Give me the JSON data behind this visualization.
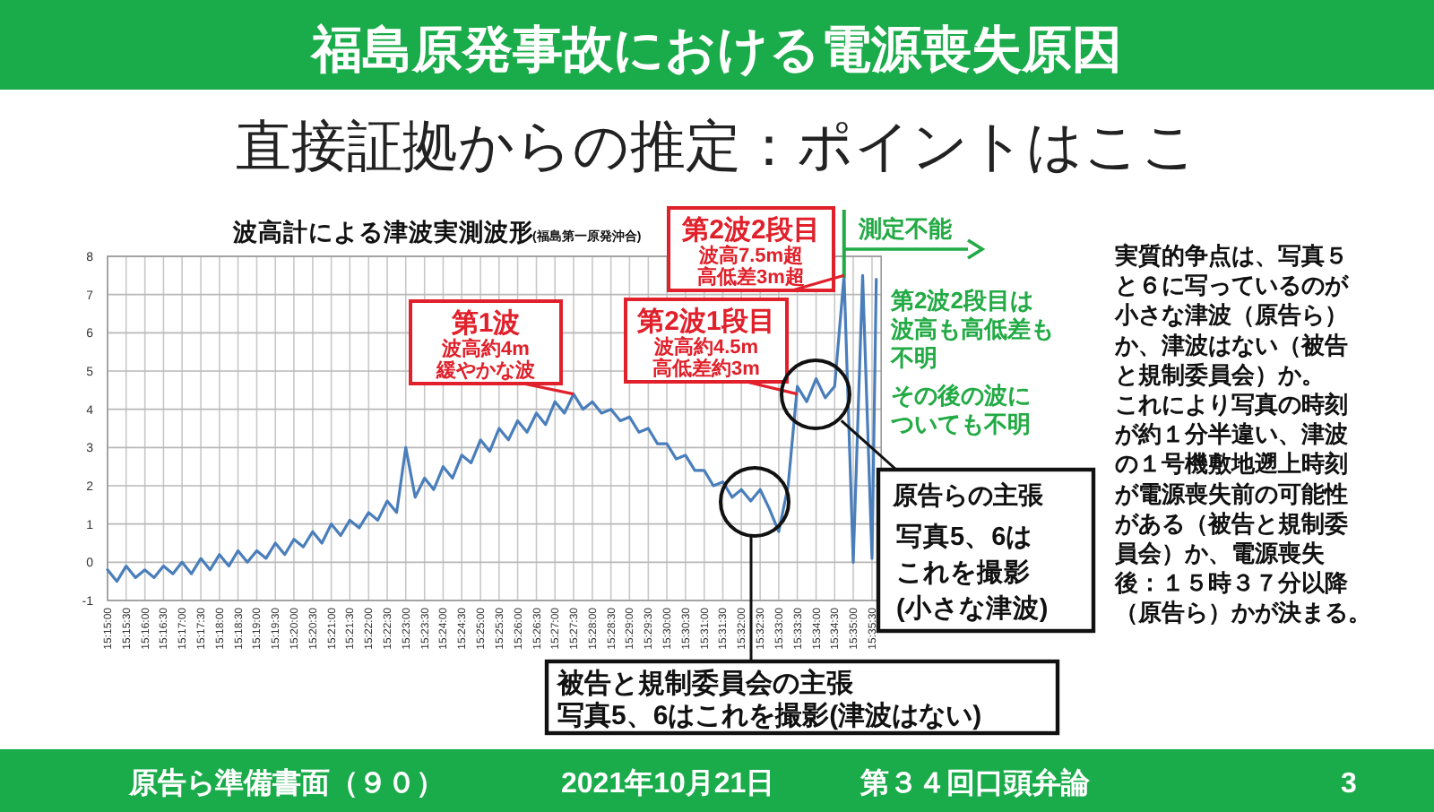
{
  "chart_data": {
    "type": "line",
    "title": "福島原発事故における電源喪失原因",
    "subtitle": "直接証拠からの推定：ポイントはここ",
    "xlim": [
      15.25,
      15.5958
    ],
    "ylim": [
      -1,
      8
    ],
    "yticks": [
      -1,
      0,
      1,
      2,
      3,
      4,
      5,
      6,
      7,
      8
    ],
    "grid": true,
    "xticks": [
      {
        "value": 15.25,
        "label": "15:15:00"
      },
      {
        "value": 15.2583,
        "label": "15:15:30"
      },
      {
        "value": 15.2667,
        "label": "15:16:00"
      },
      {
        "value": 15.275,
        "label": "15:16:30"
      },
      {
        "value": 15.2833,
        "label": "15:17:00"
      },
      {
        "value": 15.2917,
        "label": "15:17:30"
      },
      {
        "value": 15.3,
        "label": "15:18:00"
      },
      {
        "value": 15.3083,
        "label": "15:18:30"
      },
      {
        "value": 15.3167,
        "label": "15:19:00"
      },
      {
        "value": 15.325,
        "label": "15:19:30"
      },
      {
        "value": 15.3333,
        "label": "15:20:00"
      },
      {
        "value": 15.3417,
        "label": "15:20:30"
      },
      {
        "value": 15.35,
        "label": "15:21:00"
      },
      {
        "value": 15.3583,
        "label": "15:21:30"
      },
      {
        "value": 15.3667,
        "label": "15:22:00"
      },
      {
        "value": 15.375,
        "label": "15:22:30"
      },
      {
        "value": 15.3833,
        "label": "15:23:00"
      },
      {
        "value": 15.3917,
        "label": "15:23:30"
      },
      {
        "value": 15.4,
        "label": "15:24:00"
      },
      {
        "value": 15.4083,
        "label": "15:24:30"
      },
      {
        "value": 15.4167,
        "label": "15:25:00"
      },
      {
        "value": 15.425,
        "label": "15:25:30"
      },
      {
        "value": 15.4333,
        "label": "15:26:00"
      },
      {
        "value": 15.4417,
        "label": "15:26:30"
      },
      {
        "value": 15.45,
        "label": "15:27:00"
      },
      {
        "value": 15.4583,
        "label": "15:27:30"
      },
      {
        "value": 15.4667,
        "label": "15:28:00"
      },
      {
        "value": 15.475,
        "label": "15:28:30"
      },
      {
        "value": 15.4833,
        "label": "15:29:00"
      },
      {
        "value": 15.4917,
        "label": "15:29:30"
      },
      {
        "value": 15.5,
        "label": "15:30:00"
      },
      {
        "value": 15.5083,
        "label": "15:30:30"
      },
      {
        "value": 15.5167,
        "label": "15:31:00"
      },
      {
        "value": 15.525,
        "label": "15:31:30"
      },
      {
        "value": 15.5333,
        "label": "15:32:00"
      },
      {
        "value": 15.5417,
        "label": "15:32:30"
      },
      {
        "value": 15.55,
        "label": "15:33:00"
      },
      {
        "value": 15.5583,
        "label": "15:33:30"
      },
      {
        "value": 15.5667,
        "label": "15:34:00"
      },
      {
        "value": 15.575,
        "label": "15:34:30"
      },
      {
        "value": 15.5833,
        "label": "15:35:00"
      },
      {
        "value": 15.5917,
        "label": "15:35:30"
      }
    ],
    "x": [
      15.25,
      15.2542,
      15.2583,
      15.2625,
      15.2667,
      15.2708,
      15.275,
      15.2792,
      15.2833,
      15.2875,
      15.2917,
      15.2958,
      15.3,
      15.3042,
      15.3083,
      15.3125,
      15.3167,
      15.3208,
      15.325,
      15.3292,
      15.3333,
      15.3375,
      15.3417,
      15.3458,
      15.35,
      15.3542,
      15.3583,
      15.3625,
      15.3667,
      15.3708,
      15.375,
      15.3792,
      15.3833,
      15.3875,
      15.3917,
      15.3958,
      15.4,
      15.4042,
      15.4083,
      15.4125,
      15.4167,
      15.4208,
      15.425,
      15.4292,
      15.4333,
      15.4375,
      15.4417,
      15.4458,
      15.45,
      15.4542,
      15.4583,
      15.4625,
      15.4667,
      15.4708,
      15.475,
      15.4792,
      15.4833,
      15.4875,
      15.4917,
      15.4958,
      15.5,
      15.5042,
      15.5083,
      15.5125,
      15.5167,
      15.5208,
      15.525,
      15.5292,
      15.5333,
      15.5375,
      15.5417,
      15.5458,
      15.55,
      15.5542,
      15.5583,
      15.5625,
      15.5667,
      15.5708,
      15.575,
      15.5792,
      15.5833,
      15.5875,
      15.5917,
      15.5936
    ],
    "series": [
      {
        "color": "#4a7ebb",
        "values": [
          -0.2,
          -0.5,
          -0.1,
          -0.4,
          -0.2,
          -0.4,
          -0.1,
          -0.3,
          0.0,
          -0.3,
          0.1,
          -0.2,
          0.2,
          -0.1,
          0.3,
          0.0,
          0.3,
          0.1,
          0.5,
          0.2,
          0.6,
          0.4,
          0.8,
          0.5,
          1.0,
          0.7,
          1.1,
          0.9,
          1.3,
          1.1,
          1.6,
          1.3,
          3.0,
          1.7,
          2.2,
          1.9,
          2.5,
          2.2,
          2.8,
          2.6,
          3.2,
          2.9,
          3.5,
          3.2,
          3.7,
          3.4,
          3.9,
          3.6,
          4.2,
          3.9,
          4.4,
          4.0,
          4.2,
          3.9,
          4.0,
          3.7,
          3.8,
          3.4,
          3.5,
          3.1,
          3.1,
          2.7,
          2.8,
          2.4,
          2.4,
          2.0,
          2.1,
          1.7,
          1.9,
          1.6,
          1.9,
          1.4,
          0.8,
          2.0,
          4.6,
          4.2,
          4.8,
          4.3,
          4.6,
          7.5,
          0.0,
          7.5,
          0.1,
          7.4
        ]
      }
    ],
    "ref_lines": [
      {
        "axis": "x",
        "value": 15.5792,
        "label": "測定不能",
        "color": "#22aa44"
      }
    ],
    "annotations": [
      "波高計による津波実測波形",
      "(福島第一原発沖合)",
      {
        "text": "第1波波高約4m緩やかな波",
        "x": 15.4583,
        "y": 4.4
      },
      {
        "text": "第2波1段目波高約4.5m高低差約3m",
        "x": 15.5583,
        "y": 4.4
      },
      {
        "text": "第2波2段目波高7.5m超高低差3m超",
        "x": 15.5792,
        "y": 7.5
      },
      "第2波2段目は波高も高低差も不明",
      "その後の波についても不明",
      {
        "text": "原告らの主張写真5、6はこれを撮影(小さな津波)",
        "x": 15.578,
        "y": 3.7
      },
      "被告と規制委員会の主張写真5、6はこれを撮影(津波はない)",
      "実質的争点は、写真５と６に写っているのが小さな津波（原告ら）か、津波はない（被告と規制委員会）か。これにより写真の時刻が約１分半違い、津波の１号機敷地遡上時刻が電源喪失前の可能性がある（被告と規制委員会）か、電源喪失後：１５時３７分以降（原告ら）かが決まる。",
      "原告ら準備書面（９０）",
      "2021年10月21日",
      "第３４回口頭弁論",
      "3"
    ]
  }
}
